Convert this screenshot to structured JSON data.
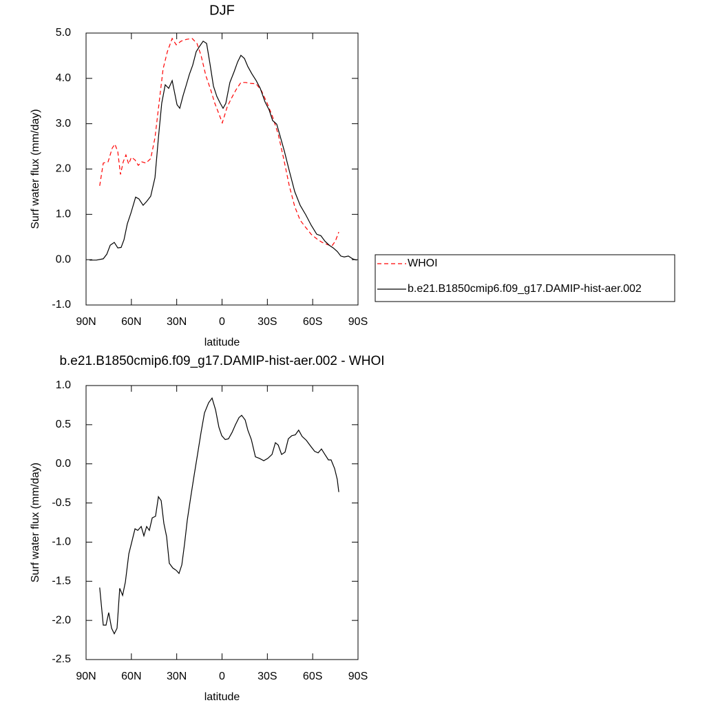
{
  "chart_data": [
    {
      "type": "line",
      "title": "DJF",
      "xlabel": "latitude",
      "ylabel": "Surf water flux (mm/day)",
      "xlim": [
        90,
        -90
      ],
      "xticks": [
        {
          "value": 90,
          "label": "90N"
        },
        {
          "value": 60,
          "label": "60N"
        },
        {
          "value": 30,
          "label": "30N"
        },
        0,
        {
          "value": -30,
          "label": "30S"
        },
        {
          "value": -60,
          "label": "60S"
        },
        {
          "value": -90,
          "label": "90S"
        }
      ],
      "ylim": [
        -1,
        5
      ],
      "yticks": [
        {
          "value": -1,
          "label": "-1.0"
        },
        {
          "value": 0,
          "label": "0.0"
        },
        {
          "value": 1,
          "label": "1.0"
        },
        {
          "value": 2,
          "label": "2.0"
        },
        {
          "value": 3,
          "label": "3.0"
        },
        {
          "value": 4,
          "label": "4.0"
        },
        {
          "value": 5,
          "label": "5.0"
        }
      ],
      "legend": "right",
      "series": [
        {
          "name": "WHOI",
          "color": "#ff0000",
          "dashed": true,
          "x": [
            81,
            78.6,
            75.4,
            72.7,
            70.9,
            69,
            67.2,
            65.4,
            63.6,
            61.8,
            60,
            57.6,
            55.4,
            53.1,
            50.4,
            47.2,
            44.4,
            41.7,
            39,
            36.2,
            33,
            30.3,
            27.1,
            23.5,
            19.8,
            16.6,
            13.9,
            10.7,
            7.5,
            4.8,
            2.1,
            -0.2,
            -3.4,
            -6.2,
            -9.3,
            -12.5,
            -15.7,
            -18.9,
            -22.6,
            -26.2,
            -29.9,
            -33.5,
            -37.2,
            -40.8,
            -44.5,
            -48.1,
            -51.7,
            -55.4,
            -59,
            -62.7,
            -66.3,
            -70,
            -72.7,
            -75,
            -77.3
          ],
          "values": [
            1.63,
            2.13,
            2.16,
            2.46,
            2.55,
            2.38,
            1.88,
            2.16,
            2.31,
            2.11,
            2.26,
            2.2,
            2.08,
            2.16,
            2.13,
            2.23,
            2.69,
            3.45,
            4.21,
            4.59,
            4.88,
            4.74,
            4.82,
            4.86,
            4.88,
            4.77,
            4.51,
            4.06,
            3.75,
            3.45,
            3.22,
            3.02,
            3.37,
            3.56,
            3.75,
            3.91,
            3.91,
            3.89,
            3.88,
            3.72,
            3.45,
            3.15,
            2.77,
            2.23,
            1.63,
            1.17,
            0.87,
            0.71,
            0.56,
            0.46,
            0.38,
            0.33,
            0.3,
            0.41,
            0.61
          ]
        },
        {
          "name": "b.e21.B1850cmip6.f09_g17.DAMIP-hist-aer.002",
          "color": "#000000",
          "dashed": false,
          "x": [
            87.7,
            83.2,
            78.6,
            76.3,
            74,
            71.3,
            69,
            66.8,
            64.9,
            62.7,
            60.4,
            57.2,
            55,
            52.2,
            50,
            47.2,
            44.4,
            42.1,
            39.9,
            37.6,
            35.3,
            33,
            29.8,
            28,
            25.7,
            23.9,
            21.6,
            19.4,
            17.1,
            14.8,
            12.5,
            10.2,
            8,
            5.7,
            3.4,
            1.2,
            -0.7,
            -2.5,
            -5.2,
            -8,
            -10.3,
            -12.5,
            -14.8,
            -17.1,
            -19.8,
            -22.6,
            -25.3,
            -28.5,
            -31.2,
            -33.5,
            -36.2,
            -38.5,
            -41.3,
            -44.5,
            -48.1,
            -51.7,
            -55.4,
            -59,
            -62.7,
            -65.4,
            -68.1,
            -70.9,
            -73.6,
            -76.3,
            -78.6,
            -80.9,
            -83.6,
            -86.4,
            -89.1
          ],
          "values": [
            -0.01,
            -0.01,
            0.02,
            0.12,
            0.32,
            0.38,
            0.26,
            0.27,
            0.44,
            0.79,
            1.02,
            1.38,
            1.34,
            1.2,
            1.28,
            1.4,
            1.81,
            2.69,
            3.45,
            3.86,
            3.78,
            3.95,
            3.42,
            3.34,
            3.63,
            3.83,
            4.09,
            4.29,
            4.59,
            4.71,
            4.82,
            4.77,
            4.33,
            3.83,
            3.6,
            3.45,
            3.34,
            3.45,
            3.91,
            4.15,
            4.36,
            4.51,
            4.44,
            4.26,
            4.1,
            3.95,
            3.78,
            3.48,
            3.3,
            3.07,
            2.99,
            2.72,
            2.39,
            1.96,
            1.5,
            1.2,
            0.99,
            0.76,
            0.56,
            0.53,
            0.41,
            0.32,
            0.26,
            0.18,
            0.08,
            0.06,
            0.08,
            0.02,
            -0.01
          ]
        }
      ]
    },
    {
      "type": "line",
      "title": "b.e21.B1850cmip6.f09_g17.DAMIP-hist-aer.002 - WHOI",
      "xlabel": "latitude",
      "ylabel": "Surf water flux (mm/day)",
      "xlim": [
        90,
        -90
      ],
      "xticks": [
        {
          "value": 90,
          "label": "90N"
        },
        {
          "value": 60,
          "label": "60N"
        },
        {
          "value": 30,
          "label": "30N"
        },
        0,
        {
          "value": -30,
          "label": "30S"
        },
        {
          "value": -60,
          "label": "60S"
        },
        {
          "value": -90,
          "label": "90S"
        }
      ],
      "ylim": [
        -2.5,
        1
      ],
      "yticks": [
        {
          "value": -2.5,
          "label": "-2.5"
        },
        {
          "value": -2,
          "label": "-2.0"
        },
        {
          "value": -1.5,
          "label": "-1.5"
        },
        {
          "value": -1,
          "label": "-1.0"
        },
        {
          "value": -0.5,
          "label": "-0.5"
        },
        {
          "value": 0,
          "label": "0.0"
        },
        {
          "value": 0.5,
          "label": "0.5"
        },
        {
          "value": 1,
          "label": "1.0"
        }
      ],
      "series": [
        {
          "color": "#000000",
          "dashed": false,
          "x": [
            81,
            78.6,
            76.8,
            75,
            73.1,
            71.3,
            69.5,
            67.7,
            65.8,
            64,
            61.7,
            60,
            57.6,
            55.8,
            53.5,
            51.7,
            49.9,
            48.1,
            46.2,
            44,
            42.1,
            40.3,
            38.5,
            36.7,
            34.9,
            32.6,
            30.3,
            28.5,
            26.6,
            24.8,
            23,
            20.7,
            18.4,
            16.2,
            13.9,
            11.6,
            8.9,
            6.6,
            4.3,
            2.1,
            0.2,
            -2.1,
            -4.3,
            -6.6,
            -8.9,
            -11.2,
            -13,
            -15.3,
            -17.1,
            -19.4,
            -22.1,
            -24.8,
            -27.6,
            -30.3,
            -33.1,
            -35.3,
            -37.2,
            -39.4,
            -41.7,
            -43.9,
            -46.2,
            -48.5,
            -50.7,
            -53,
            -55.8,
            -58.5,
            -61.3,
            -63.6,
            -65.8,
            -68.1,
            -70.4,
            -72.2,
            -74.5,
            -76.3,
            -77.3
          ],
          "values": [
            -1.58,
            -2.06,
            -2.06,
            -1.9,
            -2.1,
            -2.17,
            -2.1,
            -1.59,
            -1.68,
            -1.51,
            -1.15,
            -1.02,
            -0.83,
            -0.85,
            -0.8,
            -0.92,
            -0.8,
            -0.85,
            -0.69,
            -0.67,
            -0.42,
            -0.47,
            -0.76,
            -0.93,
            -1.27,
            -1.33,
            -1.36,
            -1.4,
            -1.29,
            -1.02,
            -0.72,
            -0.42,
            -0.14,
            0.12,
            0.4,
            0.65,
            0.78,
            0.84,
            0.69,
            0.47,
            0.36,
            0.31,
            0.32,
            0.4,
            0.5,
            0.59,
            0.62,
            0.56,
            0.43,
            0.31,
            0.09,
            0.07,
            0.04,
            0.07,
            0.12,
            0.27,
            0.24,
            0.12,
            0.15,
            0.32,
            0.36,
            0.37,
            0.43,
            0.35,
            0.3,
            0.23,
            0.16,
            0.14,
            0.19,
            0.12,
            0.05,
            0.05,
            -0.06,
            -0.2,
            -0.36
          ]
        }
      ]
    }
  ]
}
